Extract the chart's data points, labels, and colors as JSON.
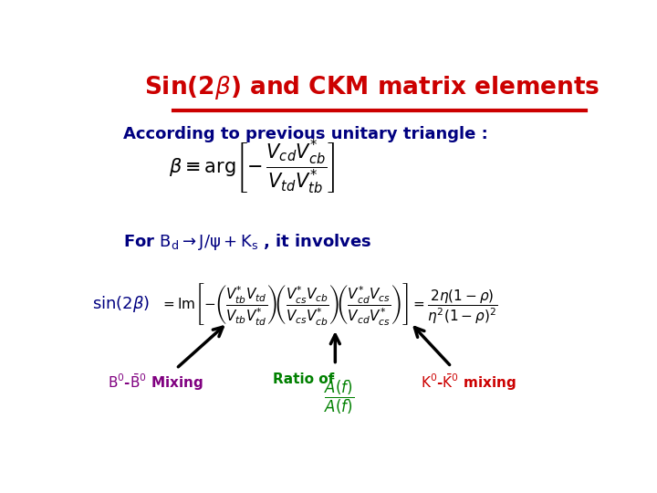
{
  "title": "Sin(2$\\beta$) and CKM matrix elements",
  "title_color": "#CC0000",
  "background_color": "#FFFFFF",
  "line_color": "#CC0000",
  "text1": "According to previous unitary triangle :",
  "text1_color": "#000080",
  "formula1": "$\\beta \\equiv \\mathrm{arg}\\left[-\\,\\dfrac{V_{cd}V_{cb}^{*}}{V_{td}V_{tb}^{*}}\\right]$",
  "formula1_color": "#000000",
  "text2": "For $\\mathrm{B_d} \\rightarrow \\mathrm{J/\\psi + K_s}$ , it involves",
  "text2_color": "#000080",
  "formula2_left": "$\\sin(2\\beta)$",
  "formula2_left_color": "#000080",
  "formula2_main": "$= \\mathrm{Im}\\left[-\\left(\\dfrac{V_{tb}^{*}V_{td}}{V_{tb}V_{td}^{*}}\\right)\\!\\left(\\dfrac{V_{cs}^{*}V_{cb}}{V_{cs}V_{cb}^{*}}\\right)\\!\\left(\\dfrac{V_{cd}^{*}V_{cs}}{V_{cd}V_{cs}^{*}}\\right)\\right] = \\dfrac{2\\eta(1-\\rho)}{\\eta^2(1-\\rho)^2}$",
  "formula2_main_color": "#000000",
  "label1": "$\\mathrm{B^0}$-$\\mathrm{\\bar{B}^0}$ Mixing",
  "label1_color": "#800080",
  "label2_text": "Ratio of",
  "label2_frac": "$\\dfrac{\\bar{A}(f)}{A(f)}$",
  "label2_color": "#008000",
  "label3": "$\\mathrm{K^0}$-$\\mathrm{\\bar{K}^0}$ mixing",
  "label3_color": "#CC0000",
  "arrow_color": "#000000"
}
